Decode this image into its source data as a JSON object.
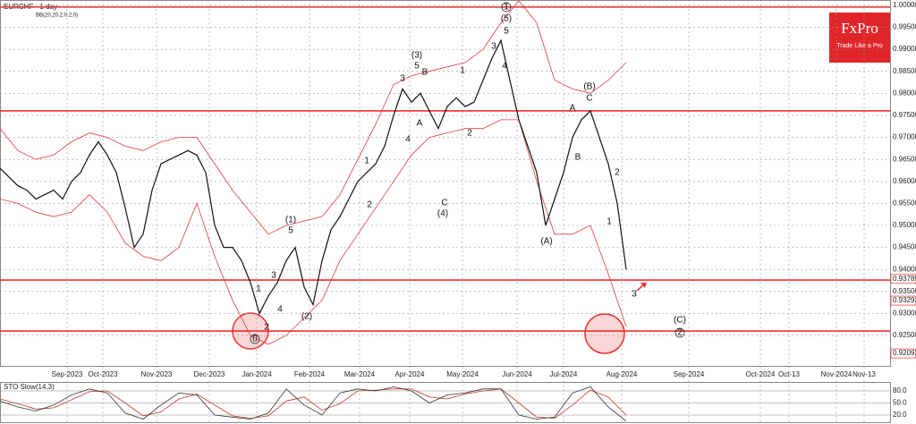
{
  "chart_data": {
    "type": "line",
    "title": "EURCHF - 1 day",
    "indicator_label": "BB(20,20,2,0,2,0)",
    "price": {
      "color": "#111111",
      "values": [
        0.963,
        0.961,
        0.959,
        0.958,
        0.956,
        0.957,
        0.958,
        0.956,
        0.96,
        0.962,
        0.966,
        0.969,
        0.966,
        0.962,
        0.954,
        0.945,
        0.948,
        0.958,
        0.964,
        0.965,
        0.966,
        0.967,
        0.966,
        0.962,
        0.95,
        0.945,
        0.945,
        0.942,
        0.937,
        0.93,
        0.934,
        0.937,
        0.942,
        0.945,
        0.936,
        0.932,
        0.942,
        0.949,
        0.952,
        0.956,
        0.96,
        0.962,
        0.964,
        0.968,
        0.975,
        0.981,
        0.978,
        0.98,
        0.976,
        0.972,
        0.977,
        0.979,
        0.977,
        0.978,
        0.983,
        0.988,
        0.992,
        0.983,
        0.974,
        0.968,
        0.962,
        0.95,
        0.956,
        0.962,
        0.97,
        0.974,
        0.976,
        0.97,
        0.964,
        0.955,
        0.94
      ]
    },
    "bb_color": "#e23a3a",
    "bb_upper": [
      0.972,
      0.967,
      0.965,
      0.966,
      0.969,
      0.971,
      0.97,
      0.968,
      0.967,
      0.969,
      0.97,
      0.97,
      0.964,
      0.958,
      0.953,
      0.948,
      0.95,
      0.951,
      0.952,
      0.957,
      0.965,
      0.973,
      0.982,
      0.984,
      0.985,
      0.986,
      0.987,
      0.99,
      0.996,
      1.001,
      0.996,
      0.983,
      0.981,
      0.98,
      0.983,
      0.987
    ],
    "bb_lower": [
      0.956,
      0.955,
      0.953,
      0.952,
      0.953,
      0.957,
      0.953,
      0.946,
      0.943,
      0.942,
      0.945,
      0.955,
      0.943,
      0.933,
      0.925,
      0.923,
      0.925,
      0.929,
      0.933,
      0.942,
      0.948,
      0.954,
      0.96,
      0.966,
      0.97,
      0.971,
      0.972,
      0.972,
      0.974,
      0.974,
      0.96,
      0.948,
      0.948,
      0.95,
      0.939,
      0.927
    ],
    "levels": [
      0.9996,
      0.97602,
      0.9376,
      0.92601
    ],
    "level_color": "#e8312f",
    "ylim": [
      0.9179,
      1.0012
    ],
    "yticks": [
      {
        "value": 1.0,
        "label": "1.00000"
      },
      {
        "value": 0.995,
        "label": "0.99500"
      },
      {
        "value": 0.99,
        "label": "0.99000"
      },
      {
        "value": 0.985,
        "label": "0.98500"
      },
      {
        "value": 0.98,
        "label": "0.98000"
      },
      {
        "value": 0.975,
        "label": "0.97500"
      },
      {
        "value": 0.97,
        "label": "0.97000"
      },
      {
        "value": 0.965,
        "label": "0.96500"
      },
      {
        "value": 0.96,
        "label": "0.96000"
      },
      {
        "value": 0.955,
        "label": "0.95500"
      },
      {
        "value": 0.95,
        "label": "0.95000"
      },
      {
        "value": 0.945,
        "label": "0.94500"
      },
      {
        "value": 0.94,
        "label": "0.94000"
      },
      {
        "value": 0.935,
        "label": "0.93500"
      },
      {
        "value": 0.93,
        "label": "0.93000"
      },
      {
        "value": 0.925,
        "label": "0.92500"
      }
    ],
    "price_labels": [
      {
        "value": 0.93785,
        "label": "0.93785"
      },
      {
        "value": 0.93292,
        "label": "0.93292"
      },
      {
        "value": 0.92093,
        "label": "0.92093"
      }
    ],
    "x_labels": [
      "Sep-2023",
      "Oct-2023",
      "Nov-2023",
      "Dec-2023",
      "Jan-2024",
      "Feb-2024",
      "Mar-2024",
      "Apr-2024",
      "May-2024",
      "Jun-2024",
      "Jul-2024",
      "Aug-2024",
      "Sep-2024",
      "Oct-2024",
      "Oct-13",
      "Nov-2024",
      "Nov-13"
    ],
    "annotations": [
      "(1)",
      "5",
      "1",
      "3",
      "4",
      "2",
      "0",
      "(2)",
      "1",
      "2",
      "3",
      "4",
      "(3)",
      "5",
      "B",
      "A",
      "C",
      "(4)",
      "1",
      "2",
      "3",
      "4",
      "5",
      "(5)",
      "1",
      "A",
      "B",
      "C",
      "(B)",
      "(A)",
      "2",
      "1",
      "3",
      "(C)",
      "2"
    ],
    "stochastic": {
      "title": "STO Slow(14,3)",
      "k": [
        55,
        40,
        30,
        45,
        70,
        85,
        75,
        25,
        10,
        45,
        75,
        70,
        20,
        15,
        10,
        25,
        85,
        45,
        20,
        75,
        85,
        80,
        90,
        80,
        50,
        70,
        75,
        85,
        85,
        20,
        10,
        15,
        75,
        90,
        40,
        5
      ],
      "d": [
        60,
        48,
        35,
        38,
        58,
        78,
        80,
        50,
        18,
        28,
        60,
        72,
        45,
        18,
        12,
        18,
        55,
        65,
        32,
        48,
        80,
        82,
        85,
        85,
        65,
        60,
        72,
        80,
        85,
        50,
        15,
        12,
        45,
        82,
        65,
        20
      ],
      "k_color": "#333333",
      "d_color": "#c0392b",
      "ylim": [
        0,
        100
      ],
      "yticks": [
        {
          "value": 80,
          "label": "80.0"
        },
        {
          "value": 50,
          "label": "50.0"
        },
        {
          "value": 20,
          "label": "20.0"
        }
      ]
    }
  },
  "logo": {
    "name": "FxPro",
    "tagline": "Trade Like a Pro"
  }
}
